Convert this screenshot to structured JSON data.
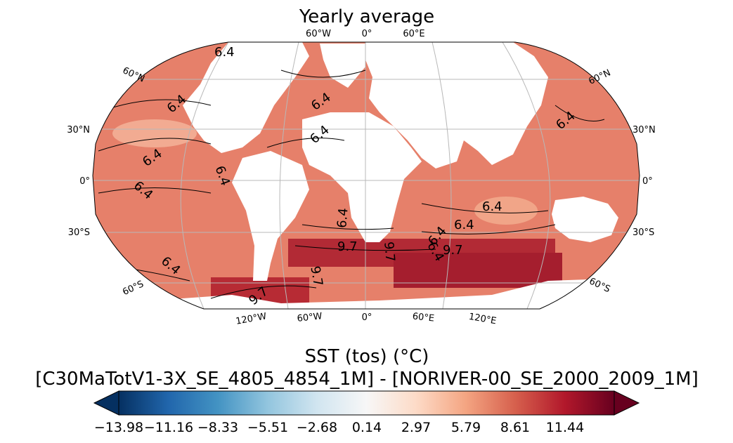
{
  "map": {
    "title": "Yearly average",
    "top_lon_labels": [
      "60°W",
      "0°",
      "60°E"
    ],
    "bottom_lon_labels": [
      "120°W",
      "60°W",
      "0°",
      "60°E",
      "120°E"
    ],
    "left_lat_labels": [
      "60°N",
      "30°N",
      "0°",
      "30°S",
      "60°S"
    ],
    "right_lat_labels": [
      "60°N",
      "30°N",
      "0°",
      "30°S",
      "60°S"
    ],
    "contour_labels": [
      "6.4",
      "6.4",
      "6.4",
      "6.4",
      "6.4",
      "6.4",
      "6.4",
      "6.4",
      "6.4",
      "6.4",
      "6.4",
      "6.4",
      "9.7",
      "9.7",
      "9.7",
      "9.7",
      "9.7",
      "6.4",
      "6.4"
    ]
  },
  "colorbar": {
    "title_line1": "SST (tos) (°C)",
    "title_line2": "[C30MaTotV1-3X_SE_4805_4854_1M] - [NORIVER-00_SE_2000_2009_1M]",
    "tick_labels": [
      "−13.98",
      "−11.16",
      "−8.33",
      "−5.51",
      "−2.68",
      "0.14",
      "2.97",
      "5.79",
      "8.61",
      "11.44"
    ],
    "colormap": "RdBu_r",
    "colors": [
      "#053061",
      "#2166ac",
      "#4393c3",
      "#92c5de",
      "#d1e5f0",
      "#f7f7f7",
      "#fddbc7",
      "#f4a582",
      "#d6604d",
      "#b2182b",
      "#67001f"
    ]
  }
}
